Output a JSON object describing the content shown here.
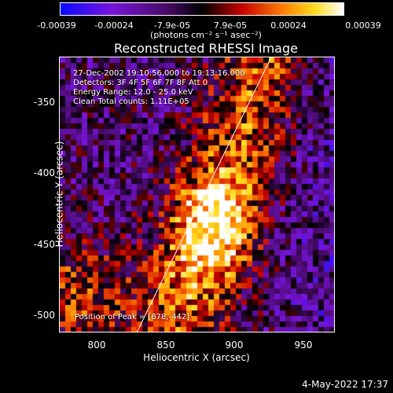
{
  "colorbar": {
    "ticks": [
      "-0.00039",
      "-0.00024",
      "-7.9e-05",
      "7.9e-05",
      "0.00024",
      "0.00039"
    ],
    "unit": "(photons cm⁻² s⁻¹ asec⁻²)"
  },
  "plot": {
    "title": "Reconstructed RHESSI Image",
    "annotations": [
      "27-Dec-2002 19:10:56.000 to 19:13:16.000",
      "Detectors: 3F 4F 5F 6F 7F 8F  Att 0",
      "Energy Range: 12.0 - 25.0 keV",
      "Clean     Total counts: 1.11E+05"
    ],
    "peak_label": "Position of Peak = [878,-442]",
    "xlabel": "Heliocentric X (arcsec)",
    "ylabel": "Heliocentric Y (arcsec)",
    "xticks": [
      "800",
      "850",
      "900",
      "950"
    ],
    "yticks": [
      "-350",
      "-400",
      "-450",
      "-500"
    ]
  },
  "footer": {
    "date": "4-May-2022 17:37"
  }
}
